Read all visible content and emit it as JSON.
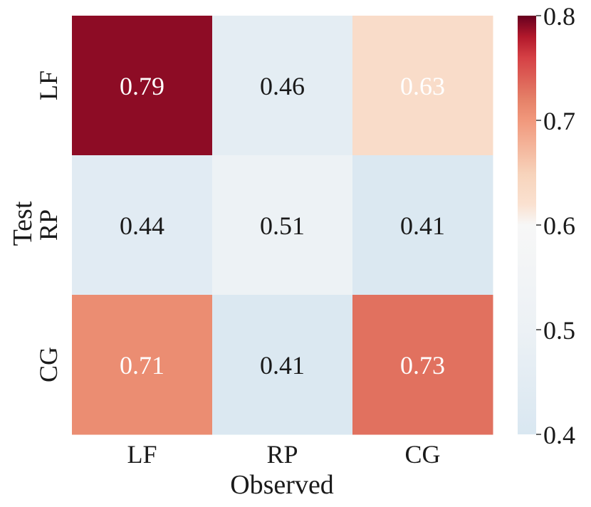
{
  "chart_data": {
    "type": "heatmap",
    "x_categories": [
      "LF",
      "RP",
      "CG"
    ],
    "y_categories": [
      "LF",
      "RP",
      "CG"
    ],
    "values": [
      [
        0.79,
        0.46,
        0.63
      ],
      [
        0.44,
        0.51,
        0.41
      ],
      [
        0.71,
        0.41,
        0.73
      ]
    ],
    "value_labels": [
      [
        "0.79",
        "0.46",
        "0.63"
      ],
      [
        "0.44",
        "0.51",
        "0.41"
      ],
      [
        "0.71",
        "0.41",
        "0.73"
      ]
    ],
    "xlabel": "Observed",
    "ylabel": "Test",
    "colorbar": {
      "range": [
        0.4,
        0.8
      ],
      "ticks": [
        "0.4",
        "0.5",
        "0.6",
        "0.7",
        "0.8"
      ],
      "colormap": "RdBu_r"
    }
  }
}
